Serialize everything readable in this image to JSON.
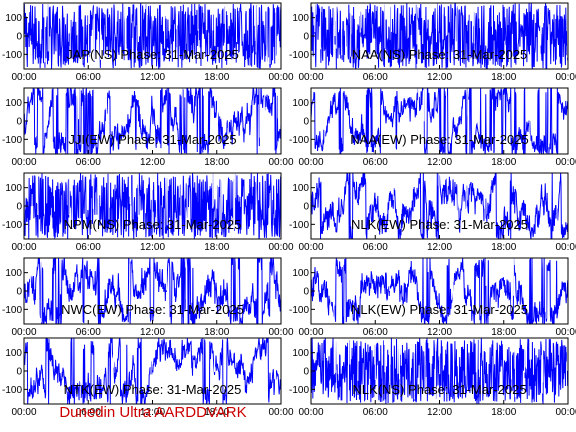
{
  "footer": "Dunedin Ultra AARDDVARK",
  "colors": {
    "trace": "#0000ff",
    "axis": "#000000",
    "footer": "#cc0000",
    "background": "#ffffff"
  },
  "x_ticks": [
    "00:00",
    "06:00",
    "12:00",
    "18:00",
    "00:00"
  ],
  "y_ticks": [
    "100",
    "0",
    "-100"
  ],
  "chart_data": [
    {
      "type": "line",
      "title": "JAP(NS) Phase: 31-Mar-2025",
      "ylim": [
        -180,
        180
      ],
      "pattern": "saturated",
      "amplitude": 1.0,
      "y_ticks": [
        100,
        0,
        -100
      ]
    },
    {
      "type": "line",
      "title": "NAA(NS) Phase: 31-Mar-2025",
      "ylim": [
        -180,
        180
      ],
      "pattern": "saturated",
      "amplitude": 1.0,
      "y_ticks": [
        100,
        0,
        -100
      ]
    },
    {
      "type": "line",
      "title": "JJI(EW) Phase: 31-Mar-2025",
      "ylim": [
        -180,
        180
      ],
      "pattern": "wrapping",
      "amplitude": 0.8,
      "y_ticks": [
        100,
        0,
        -100
      ]
    },
    {
      "type": "line",
      "title": "NAA(EW) Phase: 31-Mar-2025",
      "ylim": [
        -180,
        180
      ],
      "pattern": "wrapping",
      "amplitude": 0.6,
      "y_ticks": [
        100,
        0,
        -100
      ]
    },
    {
      "type": "line",
      "title": "NPM(NS) Phase: 31-Mar-2025",
      "ylim": [
        -180,
        180
      ],
      "pattern": "saturated",
      "amplitude": 1.0,
      "y_ticks": [
        100,
        0,
        -100
      ]
    },
    {
      "type": "line",
      "title": "NLK(EW) Phase: 31-Mar-2025",
      "ylim": [
        -180,
        180
      ],
      "pattern": "wrapping",
      "amplitude": 0.9,
      "y_ticks": [
        100,
        0,
        -100
      ]
    },
    {
      "type": "line",
      "title": "NWC(EW) Phase: 31-Mar-2025",
      "ylim": [
        -180,
        180
      ],
      "pattern": "wrapping",
      "amplitude": 0.9,
      "y_ticks": [
        100,
        0,
        -100
      ]
    },
    {
      "type": "line",
      "title": "NLK(EW) Phase: 31-Mar-2025",
      "ylim": [
        -180,
        180
      ],
      "pattern": "wrapping",
      "amplitude": 0.85,
      "y_ticks": [
        100,
        0,
        -100
      ]
    },
    {
      "type": "line",
      "title": "NTK(EW) Phase: 31-Mar-2025",
      "ylim": [
        -180,
        180
      ],
      "pattern": "wrapping",
      "amplitude": 0.7,
      "y_ticks": [
        100,
        0,
        -100
      ]
    },
    {
      "type": "line",
      "title": "NLK(NS) Phase: 31-Mar-2025",
      "ylim": [
        -180,
        180
      ],
      "pattern": "saturated",
      "amplitude": 1.0,
      "y_ticks": [
        100,
        0,
        -100
      ]
    }
  ]
}
